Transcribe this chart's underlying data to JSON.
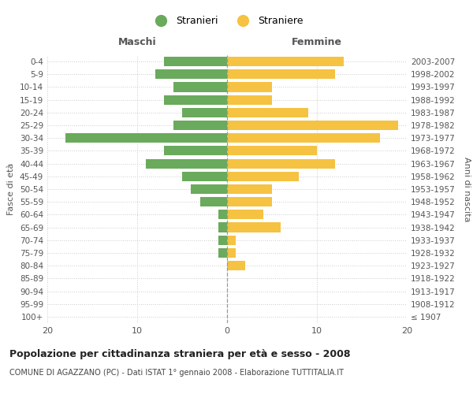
{
  "age_groups": [
    "100+",
    "95-99",
    "90-94",
    "85-89",
    "80-84",
    "75-79",
    "70-74",
    "65-69",
    "60-64",
    "55-59",
    "50-54",
    "45-49",
    "40-44",
    "35-39",
    "30-34",
    "25-29",
    "20-24",
    "15-19",
    "10-14",
    "5-9",
    "0-4"
  ],
  "birth_years": [
    "≤ 1907",
    "1908-1912",
    "1913-1917",
    "1918-1922",
    "1923-1927",
    "1928-1932",
    "1933-1937",
    "1938-1942",
    "1943-1947",
    "1948-1952",
    "1953-1957",
    "1958-1962",
    "1963-1967",
    "1968-1972",
    "1973-1977",
    "1978-1982",
    "1983-1987",
    "1988-1992",
    "1993-1997",
    "1998-2002",
    "2003-2007"
  ],
  "maschi": [
    0,
    0,
    0,
    0,
    0,
    1,
    1,
    1,
    1,
    3,
    4,
    5,
    9,
    7,
    18,
    6,
    5,
    7,
    6,
    8,
    7
  ],
  "femmine": [
    0,
    0,
    0,
    0,
    2,
    1,
    1,
    6,
    4,
    5,
    5,
    8,
    12,
    10,
    17,
    19,
    9,
    5,
    5,
    12,
    13
  ],
  "color_maschi": "#6aaa5c",
  "color_femmine": "#f5c242",
  "title": "Popolazione per cittadinanza straniera per età e sesso - 2008",
  "subtitle": "COMUNE DI AGAZZANO (PC) - Dati ISTAT 1° gennaio 2008 - Elaborazione TUTTITALIA.IT",
  "xlabel_left": "Maschi",
  "xlabel_right": "Femmine",
  "ylabel_left": "Fasce di età",
  "ylabel_right": "Anni di nascita",
  "legend_stranieri": "Stranieri",
  "legend_straniere": "Straniere",
  "xlim": 20,
  "background_color": "#ffffff"
}
